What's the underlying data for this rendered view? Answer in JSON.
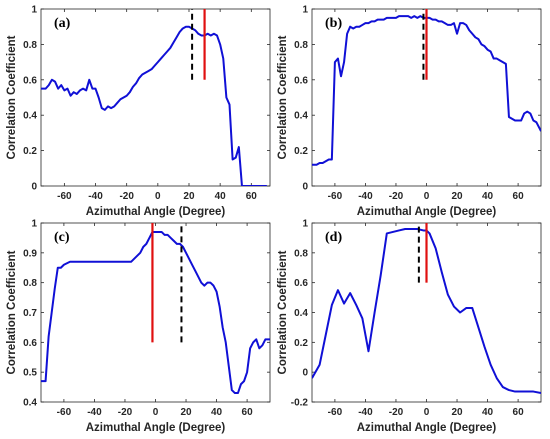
{
  "colors": {
    "series": "#1010d6",
    "red_line": "#e01010",
    "black_line": "#000000",
    "axis": "#262626"
  },
  "chart_data": [
    {
      "type": "line",
      "panel_label": "(a)",
      "xlabel": "Azimuthal Angle (Degree)",
      "ylabel": "Correlation Coefficient",
      "xlim": [
        -75,
        72
      ],
      "ylim": [
        0,
        1
      ],
      "xticks": [
        -60,
        -40,
        -20,
        0,
        20,
        40,
        60
      ],
      "xtick_labels": [
        "-60",
        "-40",
        "-20",
        "0",
        "20",
        "40",
        "60"
      ],
      "yticks": [
        0,
        0.2,
        0.4,
        0.6,
        0.8,
        1
      ],
      "ytick_labels": [
        "0",
        "0.2",
        "0.4",
        "0.6",
        "0.8",
        "1"
      ],
      "grid": false,
      "red_line": {
        "x": 30,
        "y": [
          0.6,
          1.0
        ]
      },
      "black_dashed_line": {
        "x": 22,
        "y": [
          0.6,
          1.0
        ]
      },
      "series": [
        {
          "x": [
            -75,
            -72,
            -70,
            -68,
            -66,
            -64,
            -62,
            -60,
            -58,
            -56,
            -54,
            -52,
            -50,
            -48,
            -46,
            -44,
            -42,
            -40,
            -38,
            -36,
            -34,
            -32,
            -30,
            -28,
            -26,
            -24,
            -22,
            -20,
            -18,
            -16,
            -14,
            -12,
            -10,
            -8,
            -6,
            -4,
            -2,
            0,
            2,
            4,
            6,
            8,
            10,
            12,
            14,
            16,
            18,
            20,
            22,
            24,
            26,
            28,
            30,
            32,
            34,
            36,
            38,
            40,
            42,
            44,
            46,
            48,
            50,
            52,
            54,
            56,
            58,
            60,
            62,
            64,
            66,
            68,
            70
          ],
          "y": [
            0.55,
            0.55,
            0.57,
            0.6,
            0.59,
            0.55,
            0.57,
            0.54,
            0.55,
            0.51,
            0.53,
            0.52,
            0.54,
            0.55,
            0.54,
            0.6,
            0.55,
            0.55,
            0.5,
            0.44,
            0.43,
            0.45,
            0.44,
            0.45,
            0.47,
            0.49,
            0.5,
            0.51,
            0.53,
            0.56,
            0.58,
            0.61,
            0.63,
            0.64,
            0.65,
            0.66,
            0.68,
            0.7,
            0.72,
            0.74,
            0.76,
            0.78,
            0.81,
            0.84,
            0.87,
            0.89,
            0.9,
            0.9,
            0.89,
            0.88,
            0.86,
            0.85,
            0.85,
            0.86,
            0.85,
            0.86,
            0.85,
            0.8,
            0.72,
            0.5,
            0.46,
            0.15,
            0.16,
            0.22,
            0.0,
            0.0,
            0.0,
            0.0,
            0.0,
            0.0,
            0.0,
            0.0,
            0.0
          ]
        }
      ]
    },
    {
      "type": "line",
      "panel_label": "(b)",
      "xlabel": "Azimuthal Angle (Degree)",
      "ylabel": "Correlation Coefficient",
      "xlim": [
        -75,
        75
      ],
      "ylim": [
        0,
        1
      ],
      "xticks": [
        -60,
        -40,
        -20,
        0,
        20,
        40,
        60
      ],
      "xtick_labels": [
        "-60",
        "-40",
        "-20",
        "0",
        "20",
        "40",
        "60"
      ],
      "yticks": [
        0,
        0.2,
        0.4,
        0.6,
        0.8,
        1
      ],
      "ytick_labels": [
        "0",
        "0.2",
        "0.4",
        "0.6",
        "0.8",
        "1"
      ],
      "grid": false,
      "red_line": {
        "x": 0,
        "y": [
          0.6,
          1.0
        ]
      },
      "black_dashed_line": {
        "x": -2,
        "y": [
          0.6,
          1.0
        ]
      },
      "series": [
        {
          "x": [
            -75,
            -72,
            -70,
            -68,
            -66,
            -64,
            -62,
            -60,
            -58,
            -56,
            -54,
            -52,
            -50,
            -48,
            -46,
            -44,
            -42,
            -40,
            -38,
            -36,
            -34,
            -32,
            -30,
            -28,
            -26,
            -24,
            -22,
            -20,
            -18,
            -16,
            -14,
            -12,
            -10,
            -8,
            -6,
            -4,
            -2,
            0,
            2,
            4,
            6,
            8,
            10,
            12,
            14,
            16,
            18,
            20,
            22,
            24,
            26,
            28,
            30,
            32,
            34,
            36,
            38,
            40,
            42,
            44,
            46,
            48,
            50,
            52,
            54,
            56,
            58,
            60,
            62,
            64,
            66,
            68,
            70,
            72,
            75
          ],
          "y": [
            0.12,
            0.12,
            0.13,
            0.13,
            0.14,
            0.15,
            0.15,
            0.7,
            0.72,
            0.62,
            0.7,
            0.86,
            0.9,
            0.89,
            0.9,
            0.9,
            0.91,
            0.92,
            0.92,
            0.93,
            0.93,
            0.94,
            0.94,
            0.94,
            0.95,
            0.95,
            0.95,
            0.95,
            0.96,
            0.96,
            0.96,
            0.96,
            0.95,
            0.96,
            0.95,
            0.96,
            0.95,
            0.95,
            0.95,
            0.94,
            0.94,
            0.93,
            0.93,
            0.92,
            0.91,
            0.91,
            0.92,
            0.86,
            0.92,
            0.92,
            0.91,
            0.88,
            0.86,
            0.84,
            0.83,
            0.8,
            0.79,
            0.77,
            0.76,
            0.72,
            0.72,
            0.71,
            0.7,
            0.69,
            0.39,
            0.38,
            0.37,
            0.37,
            0.37,
            0.41,
            0.42,
            0.41,
            0.37,
            0.36,
            0.31
          ]
        }
      ]
    },
    {
      "type": "line",
      "panel_label": "(c)",
      "xlabel": "Azimuthal Angle (Degree)",
      "ylabel": "Correlation Coefficient",
      "xlim": [
        -75,
        75
      ],
      "ylim": [
        0.4,
        1
      ],
      "xticks": [
        -60,
        -40,
        -20,
        0,
        20,
        40,
        60
      ],
      "xtick_labels": [
        "-60",
        "-40",
        "-20",
        "0",
        "20",
        "40",
        "60"
      ],
      "yticks": [
        0.4,
        0.5,
        0.6,
        0.7,
        0.8,
        0.9,
        1
      ],
      "ytick_labels": [
        "0.4",
        "0.5",
        "0.6",
        "0.7",
        "0.8",
        "0.9",
        "1"
      ],
      "grid": false,
      "red_line": {
        "x": -2,
        "y": [
          0.6,
          1.0
        ]
      },
      "black_dashed_line": {
        "x": 17,
        "y": [
          0.6,
          1.0
        ]
      },
      "series": [
        {
          "x": [
            -75,
            -74,
            -72,
            -70,
            -68,
            -66,
            -64,
            -62,
            -60,
            -56,
            -52,
            -48,
            -44,
            -40,
            -36,
            -32,
            -28,
            -24,
            -20,
            -18,
            -16,
            -14,
            -12,
            -10,
            -8,
            -6,
            -4,
            -2,
            0,
            2,
            4,
            6,
            8,
            10,
            12,
            14,
            16,
            18,
            20,
            22,
            24,
            26,
            28,
            30,
            32,
            34,
            36,
            38,
            40,
            42,
            44,
            46,
            48,
            50,
            52,
            54,
            56,
            58,
            60,
            62,
            64,
            66,
            68,
            70,
            72,
            75
          ],
          "y": [
            0.47,
            0.47,
            0.47,
            0.62,
            0.7,
            0.78,
            0.85,
            0.85,
            0.86,
            0.87,
            0.87,
            0.87,
            0.87,
            0.87,
            0.87,
            0.87,
            0.87,
            0.87,
            0.87,
            0.87,
            0.87,
            0.88,
            0.89,
            0.9,
            0.92,
            0.93,
            0.95,
            0.97,
            0.97,
            0.97,
            0.97,
            0.96,
            0.96,
            0.95,
            0.94,
            0.93,
            0.93,
            0.92,
            0.9,
            0.88,
            0.86,
            0.84,
            0.82,
            0.8,
            0.79,
            0.8,
            0.8,
            0.79,
            0.77,
            0.72,
            0.65,
            0.6,
            0.52,
            0.44,
            0.43,
            0.43,
            0.46,
            0.47,
            0.5,
            0.58,
            0.6,
            0.61,
            0.58,
            0.59,
            0.61,
            0.61
          ]
        }
      ]
    },
    {
      "type": "line",
      "panel_label": "(d)",
      "xlabel": "Azimuthal Angle (Degree)",
      "ylabel": "Correlation Coefficient",
      "xlim": [
        -75,
        75
      ],
      "ylim": [
        -0.2,
        1
      ],
      "xticks": [
        -60,
        -40,
        -20,
        0,
        20,
        40,
        60
      ],
      "xtick_labels": [
        "-60",
        "-40",
        "-20",
        "0",
        "20",
        "40",
        "60"
      ],
      "yticks": [
        -0.2,
        0,
        0.2,
        0.4,
        0.6,
        0.8,
        1
      ],
      "ytick_labels": [
        "-0.2",
        "0",
        "0.2",
        "0.4",
        "0.6",
        "0.8",
        "1"
      ],
      "grid": false,
      "red_line": {
        "x": 0,
        "y": [
          0.6,
          1.0
        ]
      },
      "black_dashed_line": {
        "x": -5,
        "y": [
          0.6,
          1.0
        ]
      },
      "series": [
        {
          "x": [
            -75,
            -70,
            -66,
            -62,
            -58,
            -54,
            -50,
            -46,
            -42,
            -38,
            -34,
            -30,
            -26,
            -22,
            -18,
            -14,
            -10,
            -6,
            -2,
            0,
            2,
            6,
            10,
            14,
            18,
            22,
            26,
            30,
            34,
            38,
            42,
            46,
            50,
            54,
            58,
            62,
            66,
            70,
            75
          ],
          "y": [
            -0.04,
            0.05,
            0.25,
            0.45,
            0.55,
            0.46,
            0.53,
            0.45,
            0.36,
            0.14,
            0.4,
            0.65,
            0.93,
            0.94,
            0.95,
            0.96,
            0.96,
            0.96,
            0.95,
            0.95,
            0.93,
            0.83,
            0.67,
            0.52,
            0.44,
            0.4,
            0.43,
            0.43,
            0.3,
            0.17,
            0.05,
            -0.04,
            -0.1,
            -0.12,
            -0.13,
            -0.13,
            -0.13,
            -0.13,
            -0.14
          ]
        }
      ]
    }
  ]
}
